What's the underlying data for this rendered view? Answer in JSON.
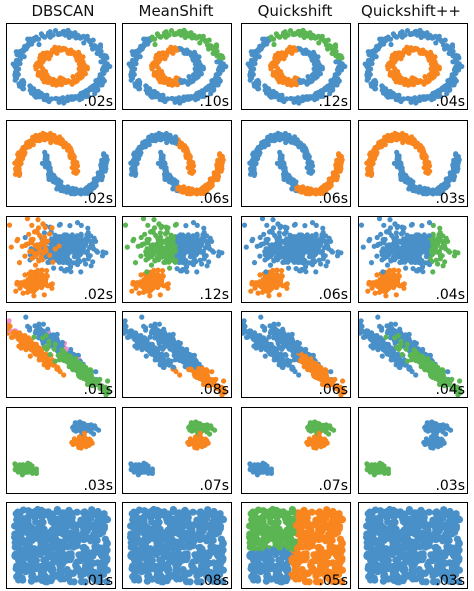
{
  "palette": {
    "blue": "#4a90c8",
    "orange": "#f8851e",
    "green": "#5ab552",
    "pink": "#f28fc8"
  },
  "chart_data": {
    "type": "scatter",
    "columns": [
      "DBSCAN",
      "MeanShift",
      "Quickshift",
      "Quickshift++"
    ],
    "datasets": [
      {
        "shape": "noisy-circles",
        "times": [
          ".02s",
          ".10s",
          ".12s",
          ".04s"
        ]
      },
      {
        "shape": "noisy-moons",
        "times": [
          ".02s",
          ".06s",
          ".06s",
          ".03s"
        ]
      },
      {
        "shape": "varied-blobs",
        "times": [
          ".02s",
          ".12s",
          ".06s",
          ".04s"
        ]
      },
      {
        "shape": "anisotropic-blobs",
        "times": [
          ".01s",
          ".08s",
          ".06s",
          ".04s"
        ]
      },
      {
        "shape": "three-blobs",
        "times": [
          ".03s",
          ".07s",
          ".07s",
          ".03s"
        ]
      },
      {
        "shape": "uniform-square",
        "times": [
          ".01s",
          ".08s",
          ".05s",
          ".03s"
        ]
      }
    ]
  }
}
